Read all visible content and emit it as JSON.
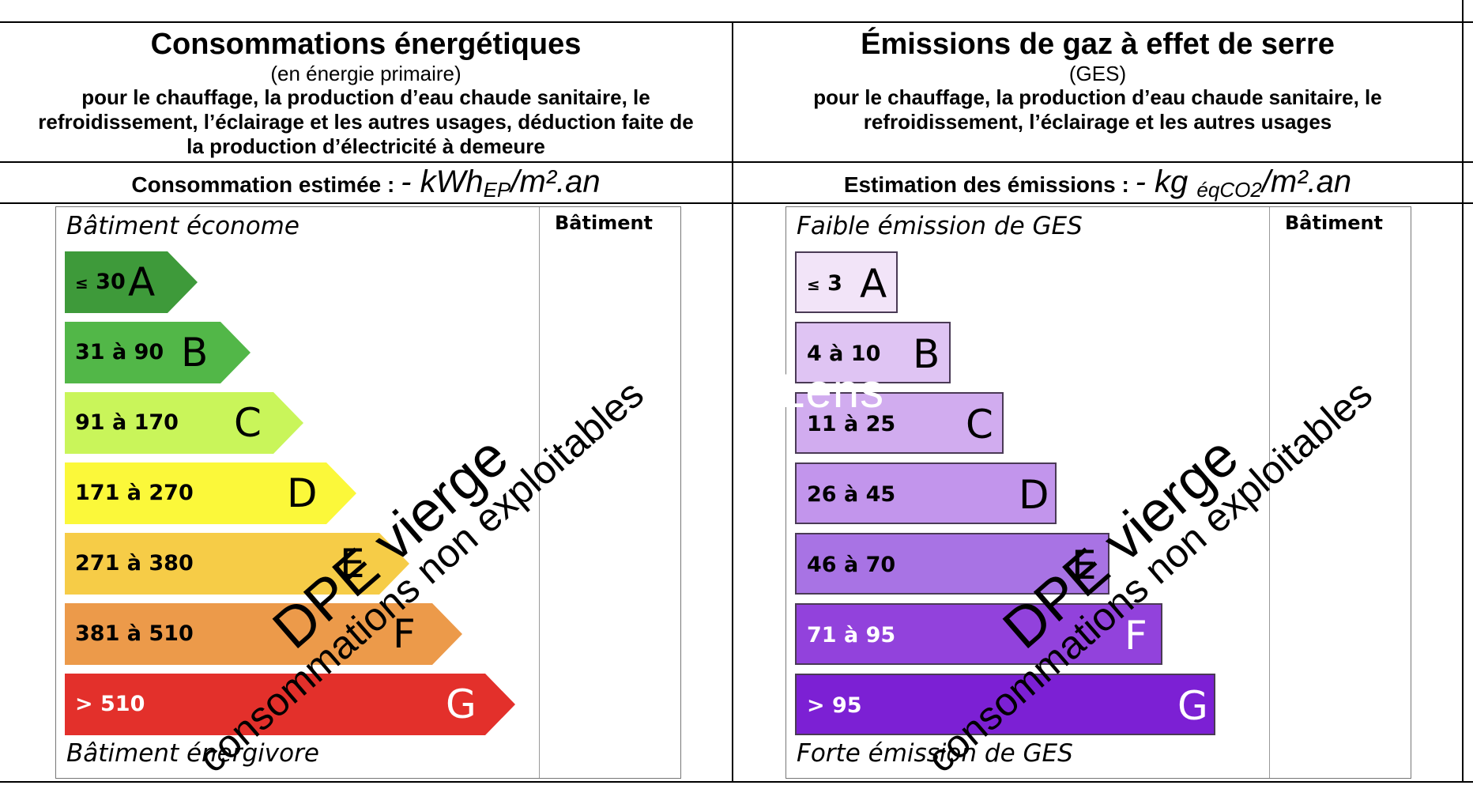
{
  "energy": {
    "title": "Consommations énergétiques",
    "subtitle": "(en énergie primaire)",
    "desc_lines": [
      "pour le chauffage, la production d’eau chaude sanitaire, le",
      "refroidissement, l’éclairage et les autres usages, déduction faite de",
      "la production d’électricité à demeure"
    ],
    "estimate_label": "Consommation estimée :",
    "estimate_value": "-",
    "unit_main": "kWh",
    "unit_sub": "EP",
    "unit_tail": "/m².an",
    "top_label": "Bâtiment économe",
    "bottom_label": "Bâtiment énergivore",
    "column_header": "Bâtiment",
    "classes": [
      {
        "letter": "A",
        "range_prefix": "≤",
        "range": "30",
        "color": "#3e9a3a"
      },
      {
        "letter": "B",
        "range_prefix": "",
        "range": "31 à 90",
        "color": "#52b748"
      },
      {
        "letter": "C",
        "range_prefix": "",
        "range": "91 à 170",
        "color": "#c9f55a"
      },
      {
        "letter": "D",
        "range_prefix": "",
        "range": "171 à 270",
        "color": "#fbf83a"
      },
      {
        "letter": "E",
        "range_prefix": "",
        "range": "271 à 380",
        "color": "#f6cc47"
      },
      {
        "letter": "F",
        "range_prefix": "",
        "range": "381 à 510",
        "color": "#ec9a4a"
      },
      {
        "letter": "G",
        "range_prefix": "",
        "range": "> 510",
        "color": "#e3302b"
      }
    ]
  },
  "ges": {
    "title": "Émissions de gaz à effet de serre",
    "subtitle": "(GES)",
    "desc_lines": [
      "pour le chauffage, la production d’eau chaude sanitaire, le",
      "refroidissement, l’éclairage et les autres usages"
    ],
    "estimate_label": "Estimation des émissions :",
    "estimate_value": "-",
    "unit_main": "kg",
    "unit_sub": "éqCO2",
    "unit_tail": "/m².an",
    "top_label": "Faible émission de GES",
    "bottom_label": "Forte émission de GES",
    "column_header": "Bâtiment",
    "classes": [
      {
        "letter": "A",
        "range_prefix": "≤",
        "range": "3",
        "color": "#f2e4f8"
      },
      {
        "letter": "B",
        "range_prefix": "",
        "range": "4 à 10",
        "color": "#dfc4f3"
      },
      {
        "letter": "C",
        "range_prefix": "",
        "range": "11 à 25",
        "color": "#d1acef"
      },
      {
        "letter": "D",
        "range_prefix": "",
        "range": "26 à 45",
        "color": "#c295ec"
      },
      {
        "letter": "E",
        "range_prefix": "",
        "range": "46 à 70",
        "color": "#a873e4"
      },
      {
        "letter": "F",
        "range_prefix": "",
        "range": "71 à 95",
        "color": "#9242dc"
      },
      {
        "letter": "G",
        "range_prefix": "",
        "range": "> 95",
        "color": "#7c20d4"
      }
    ]
  },
  "watermark": {
    "line1": "DPE vierge",
    "line2": "consommations non exploitables"
  },
  "logo_text": "Lens"
}
